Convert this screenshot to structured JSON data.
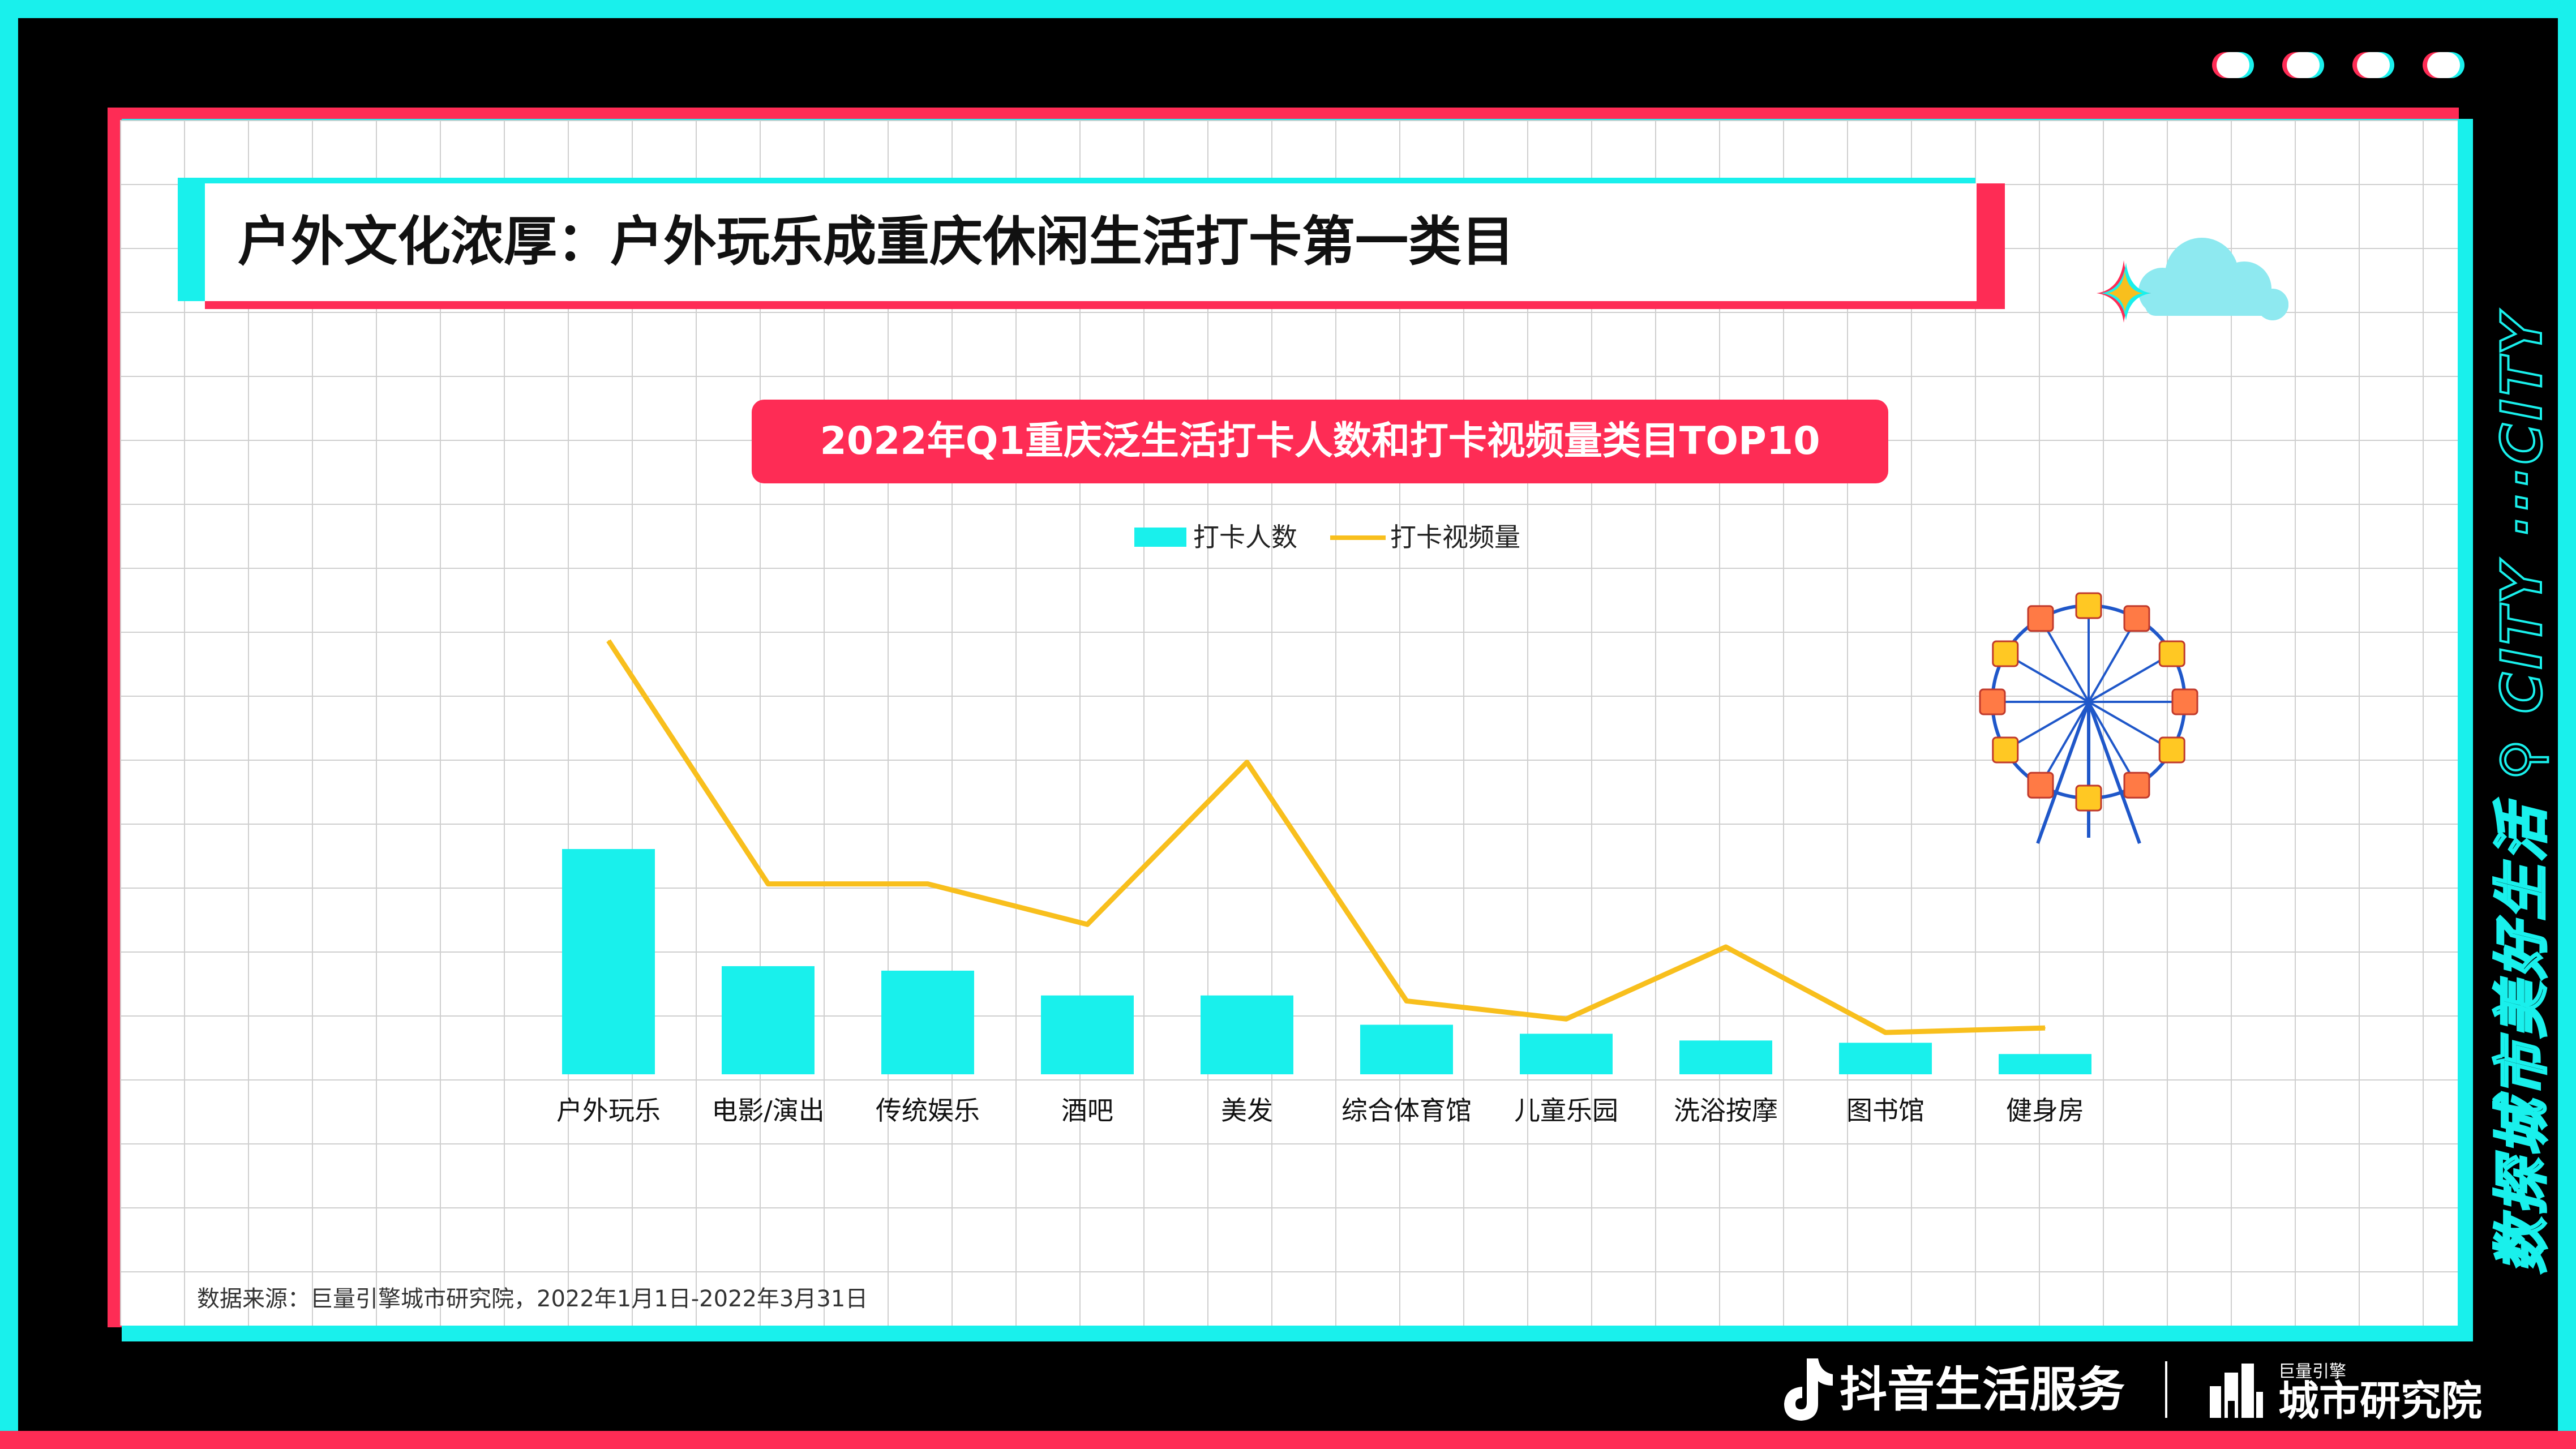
{
  "header": {
    "title": "户外文化浓厚：户外玩乐成重庆休闲生活打卡第一类目"
  },
  "side_banner": {
    "text": "数探城市美好生活 ⚲ CITY ···CITY"
  },
  "footer": {
    "source": "数据来源：巨量引擎城市研究院，2022年1月1日-2022年3月31日",
    "brand_primary": "抖音生活服务",
    "brand_secondary_small": "巨量引擎",
    "brand_secondary": "城市研究院"
  },
  "colors": {
    "cyan": "#19f0ec",
    "red": "#fe2c55",
    "yellow": "#f8bf1d"
  },
  "icons": [
    "tiktok-note-icon",
    "building-icon",
    "cloud-icon",
    "sparkle-icon",
    "ferris-wheel-icon",
    "search-icon"
  ],
  "chart_data": {
    "type": "bar",
    "title": "2022年Q1重庆泛生活打卡人数和打卡视频量类目TOP10",
    "categories": [
      "户外玩乐",
      "电影/演出",
      "传统娱乐",
      "酒吧",
      "美发",
      "综合体育馆",
      "儿童乐园",
      "洗浴按摩",
      "图书馆",
      "健身房"
    ],
    "series": [
      {
        "name": "打卡人数",
        "type": "bar",
        "color": "#19f0ec",
        "values": [
          100,
          48,
          46,
          35,
          35,
          22,
          18,
          15,
          14,
          9
        ]
      },
      {
        "name": "打卡视频量",
        "type": "line",
        "color": "#f8bf1d",
        "values": [
          100,
          46,
          46,
          37,
          73,
          20,
          16,
          32,
          13,
          14
        ]
      }
    ],
    "legend": "top-center",
    "grid": true,
    "axes_visible": false
  }
}
